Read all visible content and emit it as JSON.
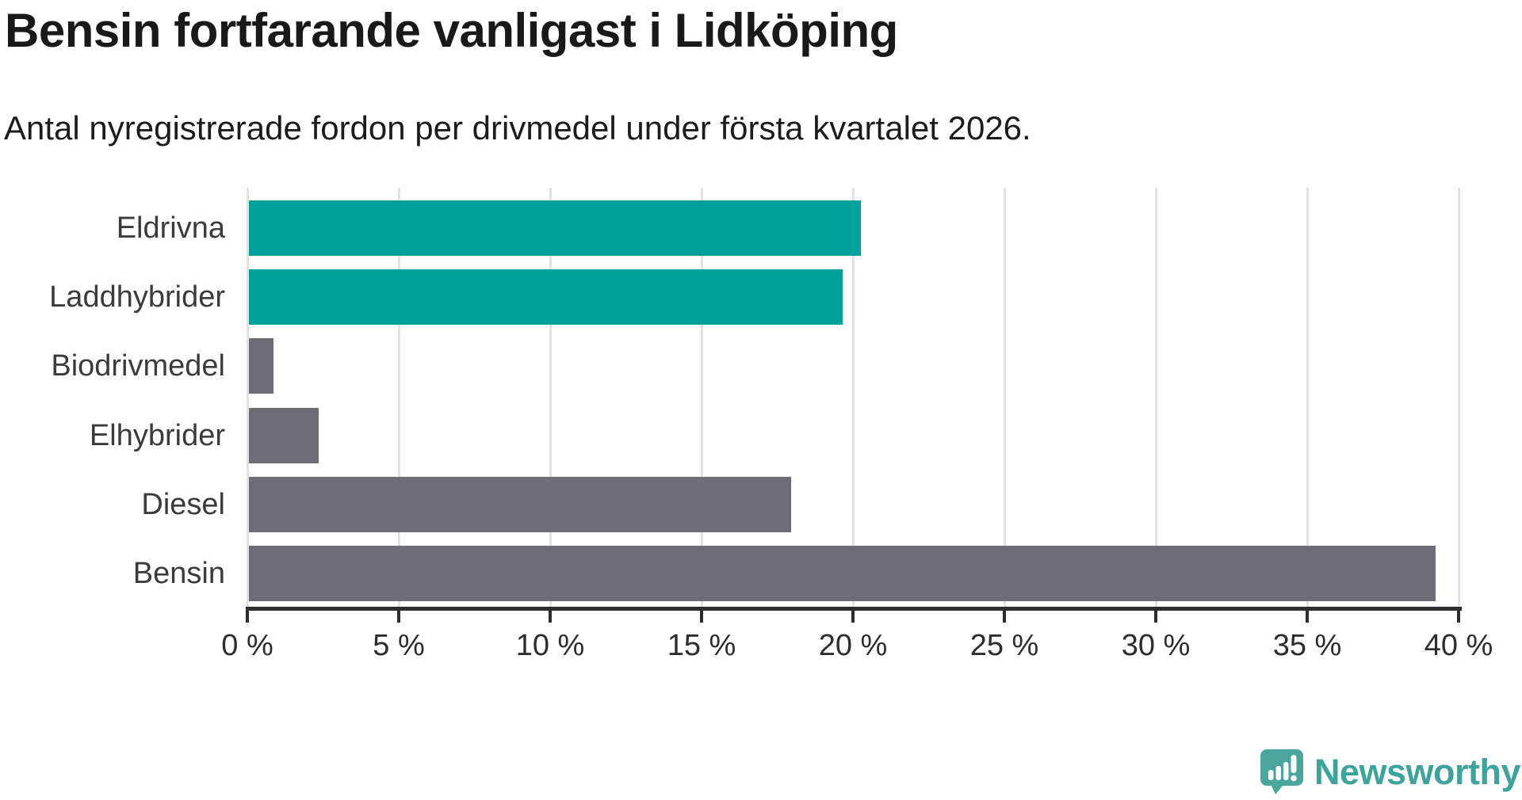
{
  "header": {
    "title": "Bensin fortfarande vanligast i Lidköping",
    "subtitle": "Antal nyregistrerade fordon per drivmedel under första kvartalet 2026."
  },
  "chart_data": {
    "type": "bar",
    "orientation": "horizontal",
    "title": "Bensin fortfarande vanligast i Lidköping",
    "subtitle": "Antal nyregistrerade fordon per drivmedel under första kvartalet 2026.",
    "categories": [
      "Eldrivna",
      "Laddhybrider",
      "Biodrivmedel",
      "Elhybrider",
      "Diesel",
      "Bensin"
    ],
    "values": [
      20.2,
      19.6,
      0.8,
      2.3,
      17.9,
      39.2
    ],
    "unit": "%",
    "bar_colors": [
      "#00a09a",
      "#00a09a",
      "#6e6d73",
      "#6e6d73",
      "#6e6d73",
      "#6e6d73"
    ],
    "highlight_color": "#00a09a",
    "default_color": "#6e6d73",
    "xlim": [
      0,
      40
    ],
    "x_ticks": [
      0,
      5,
      10,
      15,
      20,
      25,
      30,
      35,
      40
    ],
    "x_tick_labels": [
      "0 %",
      "5 %",
      "10 %",
      "15 %",
      "20 %",
      "25 %",
      "30 %",
      "35 %",
      "40 %"
    ],
    "xlabel": "",
    "ylabel": "",
    "grid": true,
    "legend": false
  },
  "colors": {
    "background": "#ffffff",
    "gridline": "#e2e2e2",
    "axis": "#2d2d2d",
    "title_text": "#191919",
    "label_text": "#3b3b3b",
    "logo_teal": "#3da49b"
  },
  "branding": {
    "logo_text": "Newsworthy"
  }
}
